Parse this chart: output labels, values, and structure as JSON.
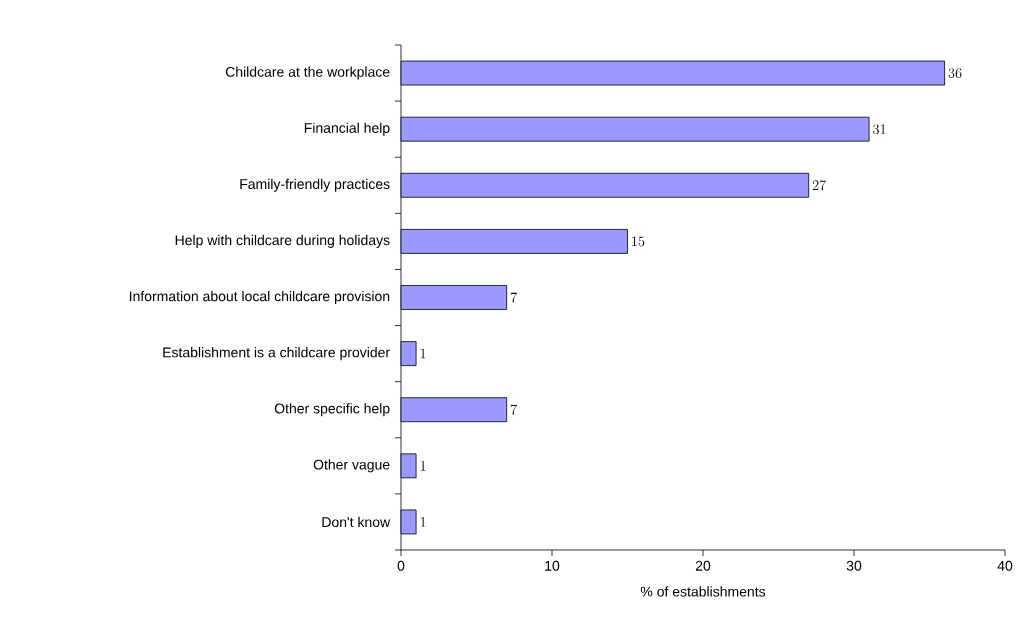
{
  "chart_data": {
    "type": "bar",
    "orientation": "horizontal",
    "categories": [
      "Childcare at the workplace",
      "Financial help",
      "Family-friendly practices",
      "Help with childcare during holidays",
      "Information about local childcare provision",
      "Establishment is a childcare provider",
      "Other specific help",
      "Other vague",
      "Don't know"
    ],
    "values": [
      36,
      31,
      27,
      15,
      7,
      1,
      7,
      1,
      1
    ],
    "color": "#9999ff",
    "xlabel": "% of establishments",
    "xlim": [
      0,
      40
    ],
    "xticks": [
      0,
      10,
      20,
      30,
      40
    ],
    "data_labels": true
  }
}
